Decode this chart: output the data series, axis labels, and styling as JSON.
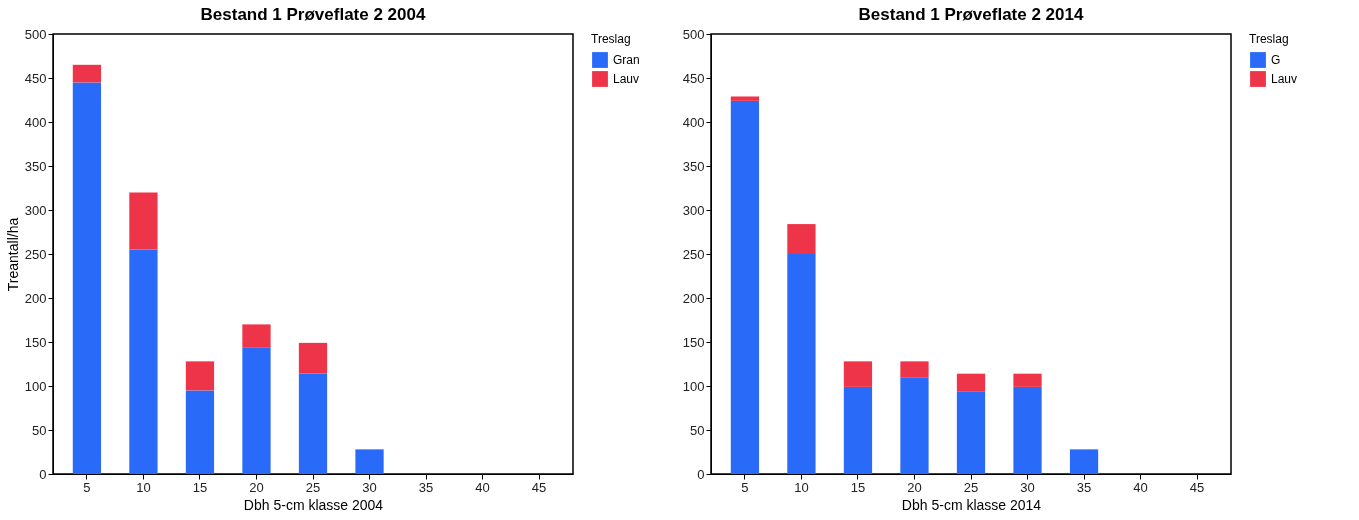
{
  "chart_data": [
    {
      "type": "bar",
      "title": "Bestand 1 Prøveflate 2 2004",
      "xlabel": "Dbh 5-cm klasse 2004",
      "ylabel": "Treantall/ha",
      "legend_title": "Treslag",
      "categories": [
        "5",
        "10",
        "15",
        "20",
        "25",
        "30",
        "35",
        "40",
        "45"
      ],
      "stacked": true,
      "ylim": [
        0,
        500
      ],
      "yticks": [
        0,
        50,
        100,
        150,
        200,
        250,
        300,
        350,
        400,
        450,
        500
      ],
      "grid": false,
      "legend": "top right",
      "series": [
        {
          "name": "Gran",
          "color": "#2a6af9",
          "values": [
            445,
            255,
            95,
            144,
            114,
            28,
            0,
            0,
            0
          ]
        },
        {
          "name": "Lauv",
          "color": "#ee3448",
          "values": [
            20,
            65,
            33,
            26,
            35,
            0,
            0,
            0,
            0
          ]
        }
      ]
    },
    {
      "type": "bar",
      "title": "Bestand 1 Prøveflate 2 2014",
      "xlabel": "Dbh 5-cm klasse 2014",
      "legend_title": "Treslag",
      "categories": [
        "5",
        "10",
        "15",
        "20",
        "25",
        "30",
        "35",
        "40",
        "45"
      ],
      "stacked": true,
      "ylim": [
        0,
        500
      ],
      "yticks": [
        0,
        50,
        100,
        150,
        200,
        250,
        300,
        350,
        400,
        450,
        500
      ],
      "grid": false,
      "legend": "top right",
      "series": [
        {
          "name": "G",
          "color": "#2a6af9",
          "values": [
            424,
            250,
            99,
            110,
            94,
            99,
            28,
            0,
            0
          ]
        },
        {
          "name": "Lauv",
          "color": "#ee3448",
          "values": [
            5,
            34,
            29,
            18,
            20,
            15,
            0,
            0,
            0
          ]
        }
      ]
    }
  ]
}
